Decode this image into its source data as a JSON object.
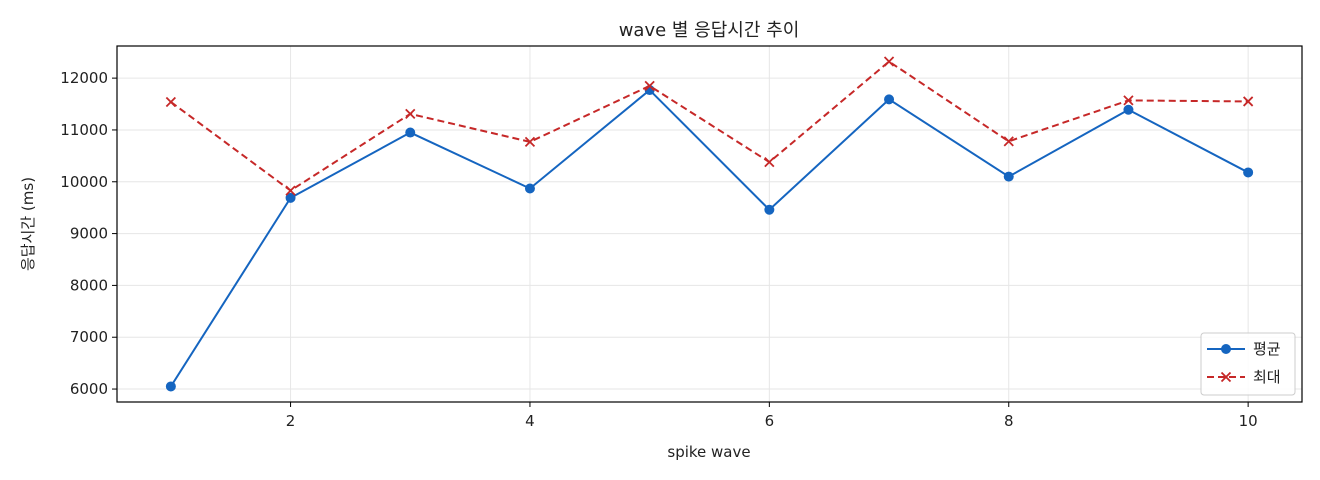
{
  "chart_data": {
    "type": "line",
    "title": "wave 별 응답시간 추이",
    "xlabel": "spike wave",
    "ylabel": "응답시간 (ms)",
    "x": [
      1,
      2,
      3,
      4,
      5,
      6,
      7,
      8,
      9,
      10
    ],
    "xlim": [
      0.55,
      10.45
    ],
    "ylim": [
      5750,
      12620
    ],
    "xticks": [
      2,
      4,
      6,
      8,
      10
    ],
    "yticks": [
      6000,
      7000,
      8000,
      9000,
      10000,
      11000,
      12000
    ],
    "grid": true,
    "legend_position": "bottom-right",
    "series": [
      {
        "name": "평균",
        "color": "#1565c0",
        "line_style": "solid",
        "marker": "circle",
        "values": [
          6050,
          9690,
          10950,
          9870,
          11770,
          9460,
          11590,
          10100,
          11390,
          10180
        ]
      },
      {
        "name": "최대",
        "color": "#c62828",
        "line_style": "dashed",
        "marker": "x",
        "values": [
          11540,
          9830,
          11310,
          10770,
          11850,
          10380,
          12320,
          10780,
          11570,
          11550
        ]
      }
    ]
  }
}
